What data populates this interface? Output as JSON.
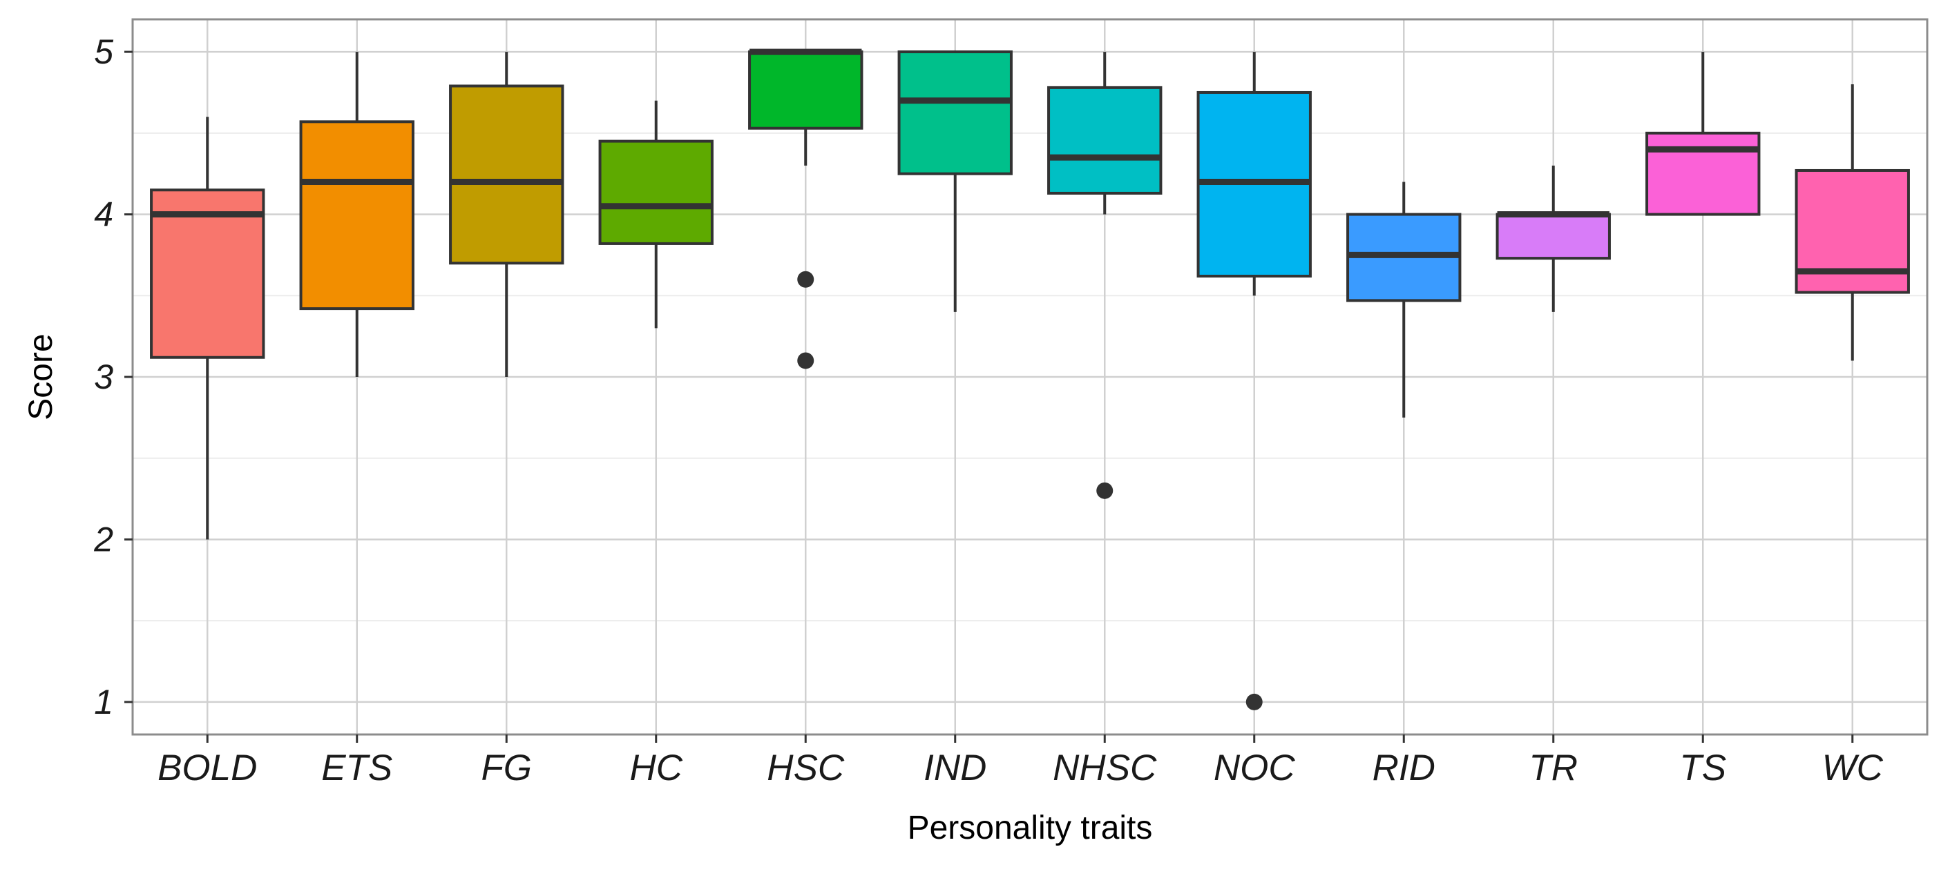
{
  "chart_data": {
    "type": "boxplot",
    "title": "",
    "xlabel": "Personality traits",
    "ylabel": "Score",
    "ylim": [
      0.8,
      5.2
    ],
    "yticks": [
      1,
      2,
      3,
      4,
      5
    ],
    "grid": true,
    "categories": [
      "BOLD",
      "ETS",
      "FG",
      "HC",
      "HSC",
      "IND",
      "NHSC",
      "NOC",
      "RID",
      "TR",
      "TS",
      "WC"
    ],
    "boxes": [
      {
        "name": "BOLD",
        "color": "#F8766D",
        "min": 2.0,
        "q1": 3.12,
        "median": 4.0,
        "q3": 4.15,
        "max": 4.6,
        "outliers": []
      },
      {
        "name": "ETS",
        "color": "#F28E00",
        "min": 3.0,
        "q1": 3.42,
        "median": 4.2,
        "q3": 4.57,
        "max": 5.0,
        "outliers": []
      },
      {
        "name": "FG",
        "color": "#C09C00",
        "min": 3.0,
        "q1": 3.7,
        "median": 4.2,
        "q3": 4.79,
        "max": 5.0,
        "outliers": []
      },
      {
        "name": "HC",
        "color": "#5EAA00",
        "min": 3.3,
        "q1": 3.82,
        "median": 4.05,
        "q3": 4.45,
        "max": 4.7,
        "outliers": []
      },
      {
        "name": "HSC",
        "color": "#00B72A",
        "min": 4.3,
        "q1": 4.53,
        "median": 5.0,
        "q3": 5.0,
        "max": 5.0,
        "outliers": [
          3.6,
          3.1
        ]
      },
      {
        "name": "IND",
        "color": "#00C08B",
        "min": 3.4,
        "q1": 4.25,
        "median": 4.7,
        "q3": 5.0,
        "max": 5.0,
        "outliers": []
      },
      {
        "name": "NHSC",
        "color": "#00BFC4",
        "min": 4.0,
        "q1": 4.13,
        "median": 4.35,
        "q3": 4.78,
        "max": 5.0,
        "outliers": [
          2.3
        ]
      },
      {
        "name": "NOC",
        "color": "#00B4F0",
        "min": 3.5,
        "q1": 3.62,
        "median": 4.2,
        "q3": 4.75,
        "max": 5.0,
        "outliers": [
          1.0
        ]
      },
      {
        "name": "RID",
        "color": "#3A9BFF",
        "min": 2.75,
        "q1": 3.47,
        "median": 3.75,
        "q3": 4.0,
        "max": 4.2,
        "outliers": []
      },
      {
        "name": "TR",
        "color": "#D87CF8",
        "min": 3.4,
        "q1": 3.73,
        "median": 4.0,
        "q3": 4.0,
        "max": 4.3,
        "outliers": []
      },
      {
        "name": "TS",
        "color": "#FB61D7",
        "min": 4.0,
        "q1": 4.0,
        "median": 4.4,
        "q3": 4.5,
        "max": 5.0,
        "outliers": []
      },
      {
        "name": "WC",
        "color": "#FF62AF",
        "min": 3.1,
        "q1": 3.52,
        "median": 3.65,
        "q3": 4.27,
        "max": 4.8,
        "outliers": []
      }
    ],
    "colors": {
      "background": "#ffffff",
      "grid_major": "#d0d0d0",
      "grid_minor": "#ececec",
      "panel_border": "#8c8c8c",
      "box_outline": "#333333"
    }
  }
}
